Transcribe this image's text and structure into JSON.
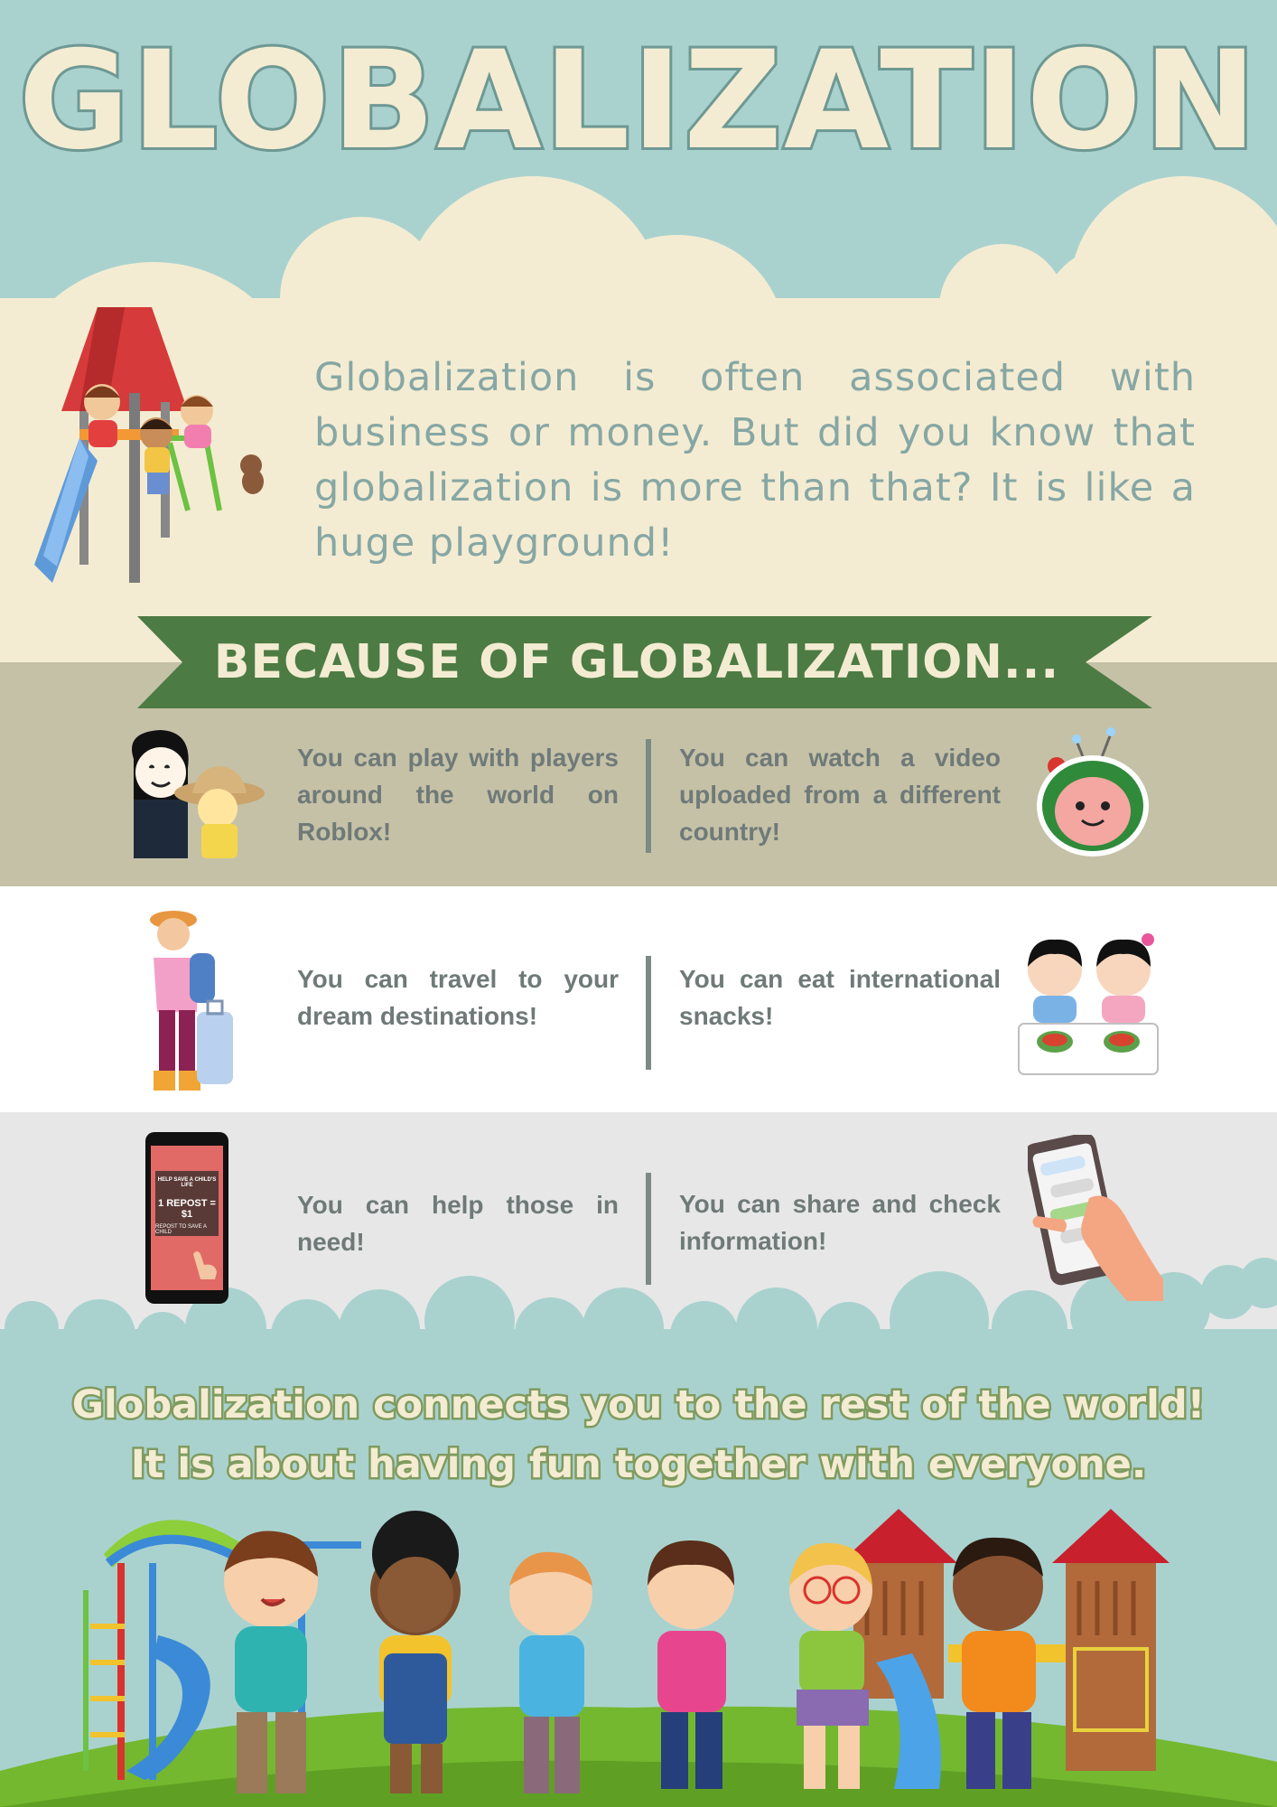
{
  "title": "GLOBALIZATION",
  "intro": "Globalization is often associated with business or money. But did you know that globalization is more than that? It is like a huge playground!",
  "banner": "BECAUSE OF GLOBALIZATION...",
  "facts": [
    {
      "text": "You can play with players around the world on Roblox!",
      "icon": "roblox-avatars-icon"
    },
    {
      "text": "You can watch a video uploaded from a different country!",
      "icon": "cocomelon-watermelon-icon"
    },
    {
      "text": "You can travel to your dream destinations!",
      "icon": "traveler-icon"
    },
    {
      "text": "You can eat international snacks!",
      "icon": "kids-eating-snacks-icon"
    },
    {
      "text": "You can help those in need!",
      "icon": "phone-charity-post-icon"
    },
    {
      "text": "You can share and check information!",
      "icon": "hand-phone-chat-icon"
    }
  ],
  "phone_post": {
    "header": "HELP SAVE A CHILD'S LIFE",
    "headline": "1 REPOST = $1",
    "subtext": "REPOST TO SAVE A CHILD"
  },
  "closing": {
    "line1": "Globalization connects you to the rest of the world!",
    "line2": "It is about having fun together with everyone."
  },
  "colors": {
    "teal": "#a9d2cf",
    "cream": "#f4ecd2",
    "green_banner": "#4c7b43",
    "khaki": "#c5c1a7",
    "light_gray": "#e7e7e7",
    "text_gray": "#6f7a78"
  }
}
